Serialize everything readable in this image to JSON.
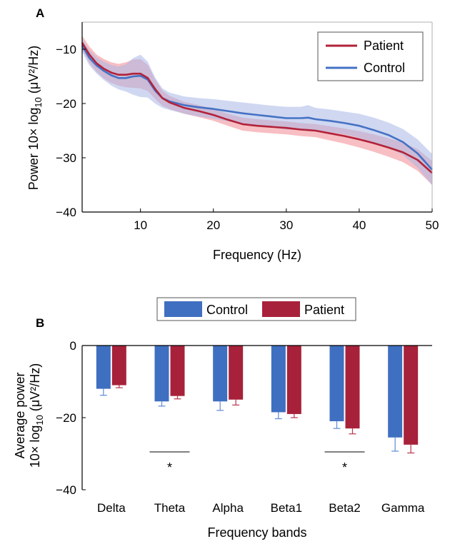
{
  "chart_data": [
    {
      "panel_label": "A",
      "type": "line",
      "xlabel": "Frequency (Hz)",
      "ylabel_prefix": "Power 10× log",
      "ylabel_sub": "10",
      "ylabel_unit": " (μV²/Hz)",
      "xlim": [
        2,
        50
      ],
      "ylim": [
        -40,
        -5
      ],
      "xticks": [
        10,
        20,
        30,
        40,
        50
      ],
      "yticks": [
        -10,
        -20,
        -30,
        -40
      ],
      "x": [
        2,
        3,
        4,
        5,
        6,
        7,
        8,
        9,
        10,
        11,
        12,
        13,
        14,
        16,
        18,
        20,
        22,
        24,
        26,
        28,
        30,
        32,
        33,
        34,
        36,
        38,
        40,
        42,
        44,
        46,
        48,
        50
      ],
      "legend": {
        "position": "top-right"
      },
      "series": [
        {
          "name": "Patient",
          "color": "#b2223a",
          "band_color": "#f08a92",
          "values": [
            -8.8,
            -11.0,
            -12.6,
            -13.6,
            -14.3,
            -14.7,
            -14.7,
            -14.5,
            -14.5,
            -15.3,
            -17.3,
            -19.0,
            -19.8,
            -20.8,
            -21.4,
            -22.1,
            -23.0,
            -23.8,
            -24.1,
            -24.3,
            -24.5,
            -24.8,
            -24.9,
            -25.0,
            -25.5,
            -26.0,
            -26.6,
            -27.3,
            -28.1,
            -29.0,
            -30.4,
            -32.8
          ],
          "band_width": [
            1.3,
            1.5,
            1.6,
            1.8,
            1.9,
            2.0,
            2.3,
            2.6,
            2.7,
            2.4,
            1.8,
            1.4,
            1.2,
            1.1,
            1.1,
            1.1,
            1.1,
            1.2,
            1.2,
            1.2,
            1.2,
            1.2,
            1.2,
            1.2,
            1.3,
            1.4,
            1.5,
            1.6,
            1.7,
            1.8,
            2.0,
            2.2
          ]
        },
        {
          "name": "Control",
          "color": "#4472c4",
          "band_color": "#aab7e6",
          "values": [
            -9.3,
            -11.6,
            -13.0,
            -14.0,
            -14.8,
            -15.3,
            -15.3,
            -15.0,
            -14.9,
            -15.6,
            -17.6,
            -19.0,
            -19.6,
            -20.3,
            -20.7,
            -21.0,
            -21.4,
            -21.8,
            -22.1,
            -22.4,
            -22.7,
            -22.7,
            -22.6,
            -22.9,
            -23.2,
            -23.6,
            -24.1,
            -24.9,
            -25.8,
            -27.1,
            -29.2,
            -32.2
          ],
          "band_width": [
            1.2,
            1.4,
            1.5,
            1.7,
            1.9,
            2.1,
            2.5,
            3.4,
            3.9,
            3.3,
            2.4,
            1.8,
            1.6,
            1.6,
            1.7,
            1.8,
            1.9,
            2.0,
            2.0,
            2.0,
            2.1,
            2.1,
            2.3,
            2.1,
            2.1,
            2.1,
            2.2,
            2.3,
            2.3,
            2.4,
            2.6,
            2.9
          ]
        }
      ]
    },
    {
      "panel_label": "B",
      "type": "bar",
      "xlabel": "Frequency bands",
      "ylabel_line1": "Average power",
      "ylabel_prefix": "10× log",
      "ylabel_sub": "10",
      "ylabel_unit": " (μV²/Hz)",
      "ylim": [
        -40,
        0
      ],
      "yticks": [
        0,
        -20,
        -40
      ],
      "categories": [
        "Delta",
        "Theta",
        "Alpha",
        "Beta1",
        "Beta2",
        "Gamma"
      ],
      "legend": {
        "position": "top-center"
      },
      "series": [
        {
          "name": "Control",
          "color": "#3f6fc0",
          "values": [
            -12.0,
            -15.5,
            -15.5,
            -18.5,
            -21.0,
            -25.5
          ],
          "error": [
            1.8,
            1.3,
            2.5,
            1.8,
            2.0,
            3.8
          ]
        },
        {
          "name": "Patient",
          "color": "#a8213a",
          "values": [
            -11.0,
            -14.0,
            -15.0,
            -19.0,
            -23.0,
            -27.5
          ],
          "error": [
            0.7,
            0.8,
            1.5,
            1.0,
            1.5,
            2.3
          ]
        }
      ],
      "significance": [
        {
          "category": "Theta",
          "label": "*"
        },
        {
          "category": "Beta2",
          "label": "*"
        }
      ]
    }
  ]
}
